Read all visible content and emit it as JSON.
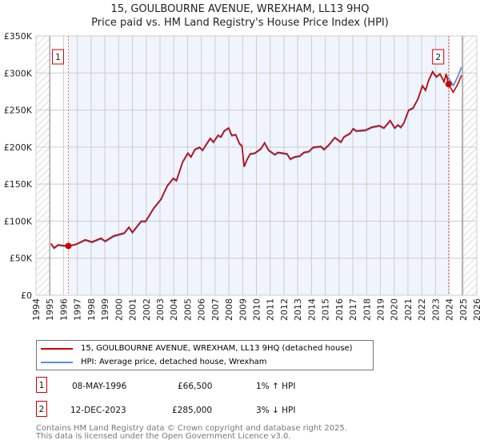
{
  "title_line1": "15, GOULBOURNE AVENUE, WREXHAM, LL13 9HQ",
  "title_line2": "Price paid vs. HM Land Registry's House Price Index (HPI)",
  "chart_data": {
    "type": "line",
    "title": "15, GOULBOURNE AVENUE, WREXHAM, LL13 9HQ - Price paid vs. HM Land Registry's House Price Index (HPI)",
    "xlim": [
      1994,
      2026
    ],
    "ylim": [
      0,
      350000
    ],
    "xticks": [
      1994,
      1995,
      1996,
      1997,
      1998,
      1999,
      2000,
      2001,
      2002,
      2003,
      2004,
      2005,
      2006,
      2007,
      2008,
      2009,
      2010,
      2011,
      2012,
      2013,
      2014,
      2015,
      2016,
      2017,
      2018,
      2019,
      2020,
      2021,
      2022,
      2023,
      2024,
      2025,
      2026
    ],
    "yticks": [
      {
        "value": 0,
        "label": "£0"
      },
      {
        "value": 50000,
        "label": "£50K"
      },
      {
        "value": 100000,
        "label": "£100K"
      },
      {
        "value": 150000,
        "label": "£150K"
      },
      {
        "value": 200000,
        "label": "£200K"
      },
      {
        "value": 250000,
        "label": "£250K"
      },
      {
        "value": 300000,
        "label": "£300K"
      },
      {
        "value": 350000,
        "label": "£350K"
      }
    ],
    "grid": true,
    "hatched_ranges": [
      [
        1994,
        1995
      ],
      [
        2024.95,
        2026
      ]
    ],
    "highlight_range": [
      1996.35,
      2023.95
    ],
    "series": [
      {
        "name": "15, GOULBOURNE AVENUE, WREXHAM, LL13 9HQ (detached house)",
        "color": "#cc0000",
        "x": [
          1995.09,
          1995.31,
          1995.6,
          1996.34,
          1996.94,
          1997.57,
          1998.06,
          1998.73,
          1999.02,
          1999.62,
          2000.4,
          2000.74,
          2001.0,
          2001.63,
          2001.96,
          2002.52,
          2003.08,
          2003.53,
          2003.97,
          2004.2,
          2004.64,
          2005.02,
          2005.25,
          2005.54,
          2005.87,
          2006.09,
          2006.65,
          2006.88,
          2007.21,
          2007.43,
          2007.66,
          2007.99,
          2008.21,
          2008.5,
          2008.77,
          2008.95,
          2009.11,
          2009.33,
          2009.55,
          2009.89,
          2010.33,
          2010.6,
          2010.89,
          2011.34,
          2011.56,
          2011.9,
          2012.23,
          2012.46,
          2012.79,
          2013.13,
          2013.46,
          2013.79,
          2014.13,
          2014.69,
          2014.91,
          2015.25,
          2015.69,
          2016.14,
          2016.36,
          2016.81,
          2017.03,
          2017.25,
          2017.92,
          2018.37,
          2018.93,
          2019.26,
          2019.71,
          2020.04,
          2020.27,
          2020.49,
          2020.71,
          2021.05,
          2021.38,
          2021.72,
          2022.05,
          2022.28,
          2022.5,
          2022.79,
          2023.06,
          2023.33,
          2023.62,
          2023.77,
          2023.95,
          2024.29,
          2024.62,
          2024.89
        ],
        "y": [
          70000,
          64000,
          68000,
          66500,
          69000,
          75000,
          72000,
          77000,
          73000,
          80000,
          84000,
          92000,
          85000,
          100000,
          100000,
          117000,
          130000,
          148000,
          158000,
          155000,
          180000,
          192000,
          187000,
          197000,
          200000,
          196000,
          212000,
          207000,
          216000,
          214000,
          222000,
          226000,
          216000,
          217000,
          205000,
          202000,
          174000,
          184000,
          191000,
          192000,
          198000,
          206000,
          196000,
          190000,
          193000,
          192000,
          191000,
          184000,
          187000,
          188000,
          193000,
          194000,
          200000,
          201000,
          197000,
          203000,
          213000,
          207000,
          214000,
          219000,
          225000,
          222000,
          223000,
          227000,
          229000,
          226000,
          236000,
          226000,
          230000,
          227000,
          233000,
          250000,
          253000,
          265000,
          283000,
          277000,
          290000,
          302000,
          295000,
          299000,
          288000,
          299000,
          285000,
          274000,
          285000,
          297000
        ]
      },
      {
        "name": "HPI: Average price, detached house, Wrexham",
        "color": "#5b8fd4",
        "x": [
          1995.09,
          1995.31,
          1995.6,
          1996.34,
          1996.94,
          1997.57,
          1998.06,
          1998.73,
          1999.02,
          1999.62,
          2000.4,
          2000.74,
          2001.0,
          2001.63,
          2001.96,
          2002.52,
          2003.08,
          2003.53,
          2003.97,
          2004.2,
          2004.64,
          2005.02,
          2005.25,
          2005.54,
          2005.87,
          2006.09,
          2006.65,
          2006.88,
          2007.21,
          2007.43,
          2007.66,
          2007.99,
          2008.21,
          2008.5,
          2008.77,
          2008.95,
          2009.11,
          2009.33,
          2009.55,
          2009.89,
          2010.33,
          2010.6,
          2010.89,
          2011.34,
          2011.56,
          2011.9,
          2012.23,
          2012.46,
          2012.79,
          2013.13,
          2013.46,
          2013.79,
          2014.13,
          2014.69,
          2014.91,
          2015.25,
          2015.69,
          2016.14,
          2016.36,
          2016.81,
          2017.03,
          2017.25,
          2017.92,
          2018.37,
          2018.93,
          2019.26,
          2019.71,
          2020.04,
          2020.27,
          2020.49,
          2020.71,
          2021.05,
          2021.38,
          2021.72,
          2022.05,
          2022.28,
          2022.5,
          2022.79,
          2023.06,
          2023.33,
          2023.62,
          2023.77,
          2023.95,
          2024.29,
          2024.62,
          2024.89
        ],
        "y": [
          69000,
          63000,
          67000,
          65800,
          68500,
          74000,
          71000,
          76000,
          72000,
          79000,
          83000,
          91000,
          84000,
          99000,
          99000,
          116000,
          129000,
          147000,
          157000,
          154000,
          179000,
          191000,
          186000,
          196000,
          199000,
          195000,
          211000,
          206000,
          215000,
          213000,
          221000,
          225000,
          215000,
          216000,
          204000,
          201000,
          173000,
          183000,
          190000,
          191000,
          197000,
          205000,
          195000,
          189000,
          192000,
          191000,
          190000,
          183000,
          186000,
          187000,
          192000,
          193000,
          199000,
          200000,
          196000,
          202000,
          212000,
          206000,
          213000,
          218000,
          224000,
          221000,
          222000,
          226000,
          228000,
          225000,
          235000,
          225000,
          229000,
          226000,
          232000,
          249000,
          252000,
          264000,
          282000,
          276000,
          289000,
          301000,
          294000,
          298000,
          289000,
          297000,
          293000,
          283000,
          295000,
          308000
        ]
      }
    ],
    "sales": [
      {
        "id": "1",
        "x": 1996.35,
        "y": 66500
      },
      {
        "id": "2",
        "x": 2023.95,
        "y": 285000
      }
    ]
  },
  "legend": {
    "property": "15, GOULBOURNE AVENUE, WREXHAM, LL13 9HQ (detached house)",
    "hpi": "HPI: Average price, detached house, Wrexham",
    "property_color": "#cc0000",
    "hpi_color": "#5b8fd4"
  },
  "transactions": [
    {
      "id": "1",
      "date": "08-MAY-1996",
      "price": "£66,500",
      "hpi": "1% ↑ HPI"
    },
    {
      "id": "2",
      "date": "12-DEC-2023",
      "price": "£285,000",
      "hpi": "3% ↓ HPI"
    }
  ],
  "footer": {
    "line1": "Contains HM Land Registry data © Crown copyright and database right 2025.",
    "line2": "This data is licensed under the Open Government Licence v3.0."
  }
}
